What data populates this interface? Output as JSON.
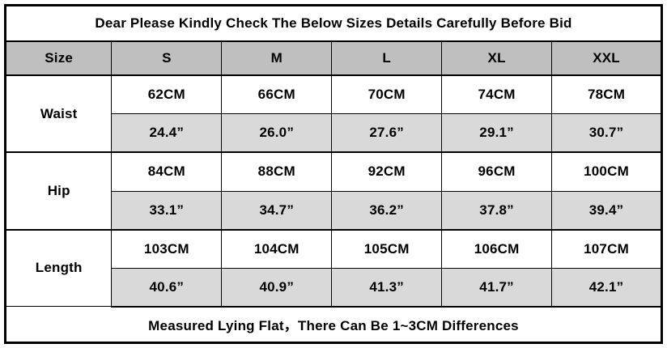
{
  "title": "Dear Please Kindly Check The Below Sizes Details Carefully Before Bid",
  "size_chart": {
    "header": [
      "Size",
      "S",
      "M",
      "L",
      "XL",
      "XXL"
    ],
    "rows": [
      {
        "label": "Waist",
        "cm": [
          "62CM",
          "66CM",
          "70CM",
          "74CM",
          "78CM"
        ],
        "inch": [
          "24.4”",
          "26.0”",
          "27.6”",
          "29.1”",
          "30.7”"
        ]
      },
      {
        "label": "Hip",
        "cm": [
          "84CM",
          "88CM",
          "92CM",
          "96CM",
          "100CM"
        ],
        "inch": [
          "33.1”",
          "34.7”",
          "36.2”",
          "37.8”",
          "39.4”"
        ]
      },
      {
        "label": "Length",
        "cm": [
          "103CM",
          "104CM",
          "105CM",
          "106CM",
          "107CM"
        ],
        "inch": [
          "40.6”",
          "40.9”",
          "41.3”",
          "41.7”",
          "42.1”"
        ]
      }
    ],
    "footer": "Measured Lying Flat，There Can Be 1~3CM Differences"
  },
  "colors": {
    "header_bg": "#bfbfbf",
    "inch_row_bg": "#d9d9d9",
    "border": "#000000",
    "background": "#ffffff"
  }
}
